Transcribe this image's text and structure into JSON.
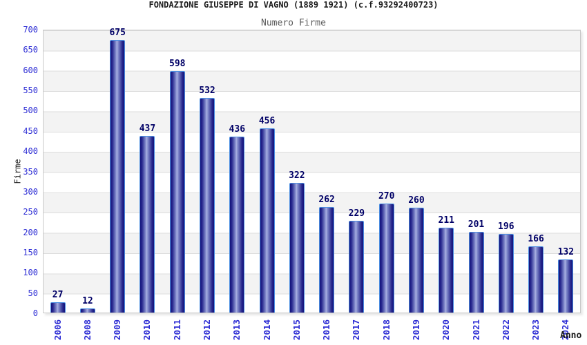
{
  "header": {
    "title": "FONDAZIONE GIUSEPPE DI VAGNO (1889 1921) (c.f.93292400723)",
    "subtitle": "Numero Firme"
  },
  "axes": {
    "x_title": "Anno",
    "y_title": "Firme"
  },
  "chart_data": {
    "type": "bar",
    "title": "FONDAZIONE GIUSEPPE DI VAGNO (1889 1921) (c.f.93292400723)",
    "subtitle": "Numero Firme",
    "xlabel": "Anno",
    "ylabel": "Firme",
    "categories": [
      "2006",
      "2008",
      "2009",
      "2010",
      "2011",
      "2012",
      "2013",
      "2014",
      "2015",
      "2016",
      "2017",
      "2018",
      "2019",
      "2020",
      "2021",
      "2022",
      "2023",
      "2024"
    ],
    "values": [
      27,
      12,
      675,
      437,
      598,
      532,
      436,
      456,
      322,
      262,
      229,
      270,
      260,
      211,
      201,
      196,
      166,
      132
    ],
    "ylim": [
      0,
      700
    ],
    "ytick_step": 50,
    "grid": "horizontal alternating bands every 50 units",
    "legend_position": "none",
    "bar_value_labels": true,
    "x_tick_rotation": -90,
    "colors": {
      "bar_edge": "#4c8fe2",
      "bar_dark": "#12127a",
      "bar_mid": "#8790cf",
      "bar_highlight": "#aab1e2",
      "value_label": "#000066",
      "axis_tick_blue": "#2b2bd4",
      "band_gray": "#f3f3f3",
      "band_white": "#ffffff",
      "gridline": "#dcdcdc",
      "plot_border": "#c8c8c8",
      "title_color": "#1c1c1c",
      "subtitle_color": "#5a5a5a"
    }
  }
}
